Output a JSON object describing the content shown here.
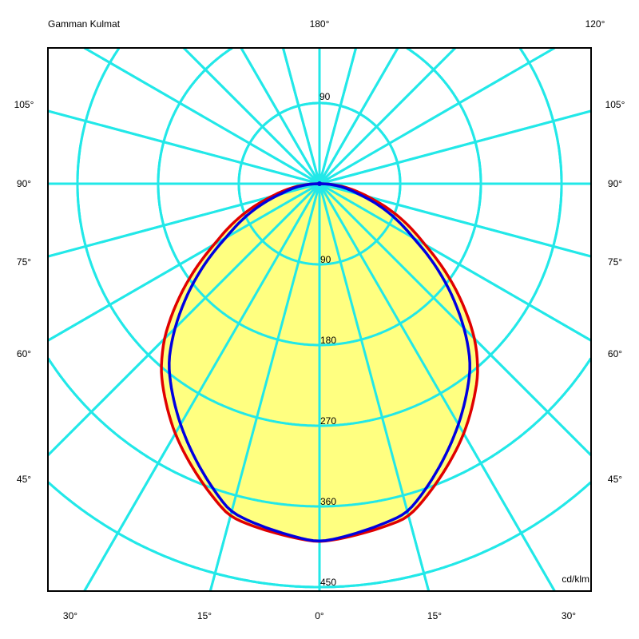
{
  "chart_data": {
    "type": "polar",
    "title": "Gamman Kulmat",
    "unit_label": "cd/klm",
    "top_labels": {
      "left": "Gamman Kulmat",
      "center": "180°",
      "right": "120°"
    },
    "side_angle_labels": [
      "105°",
      "90°",
      "75°",
      "60°",
      "45°"
    ],
    "bottom_angle_labels": [
      "30°",
      "15°",
      "0°",
      "15°",
      "30°"
    ],
    "radial_ticks": [
      90,
      180,
      270,
      360,
      450
    ],
    "upper_tick_label": "90",
    "rlim": [
      0,
      450
    ],
    "angle_grid_step_deg": 15,
    "grid": true,
    "colors": {
      "grid": "#22e8e8",
      "fill": "#ffff80",
      "c0_180": "#e00000",
      "c90_270": "#0000e0"
    },
    "series": [
      {
        "angles": [
          0,
          15,
          30,
          40,
          45,
          60,
          75,
          90
        ],
        "values": [
          400,
          385,
          322,
          275,
          245,
          135,
          55,
          0
        ],
        "color": "#e00000",
        "filled": true
      },
      {
        "angles": [
          0,
          15,
          30,
          40,
          45,
          60,
          75,
          90
        ],
        "values": [
          400,
          380,
          310,
          262,
          228,
          120,
          45,
          0
        ],
        "color": "#0000e0",
        "filled": false
      }
    ]
  }
}
